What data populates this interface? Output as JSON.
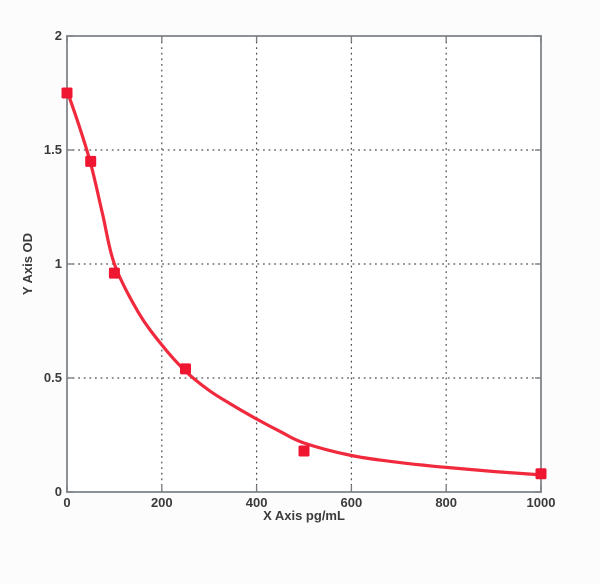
{
  "figure": {
    "xlabel": "X Axis pg/mL",
    "ylabel": "Y Axis OD",
    "colors": {
      "background": "#fcfcfc",
      "plot_background": "#ffffff",
      "axis": "#7a7f83",
      "grid": "#4f4f4f",
      "text": "#3b3b3b",
      "curve": "#f1293d",
      "marker": "#ee1630"
    }
  },
  "chart_data": {
    "type": "scatter",
    "title": "",
    "xlabel": "X Axis pg/mL",
    "ylabel": "Y Axis OD",
    "xlim": [
      0,
      1000
    ],
    "ylim": [
      0,
      2
    ],
    "grid": "dotted",
    "legend": null,
    "x_ticks": {
      "values": [
        0,
        200,
        400,
        600,
        800,
        1000
      ],
      "labels": [
        "0",
        "200",
        "400",
        "600",
        "800",
        "1000"
      ]
    },
    "y_ticks": {
      "values": [
        0,
        0.5,
        1,
        1.5,
        2
      ],
      "labels": [
        "0",
        "0.5",
        "1",
        "1.5",
        "2"
      ]
    },
    "series": [
      {
        "name": "standard-points",
        "type": "scatter",
        "marker": "square",
        "points": [
          [
            0,
            1.75
          ],
          [
            50,
            1.45
          ],
          [
            100,
            0.96
          ],
          [
            250,
            0.54
          ],
          [
            500,
            0.18
          ],
          [
            1000,
            0.08
          ]
        ]
      },
      {
        "name": "fitted-curve",
        "type": "line",
        "points": [
          [
            0,
            1.76
          ],
          [
            25,
            1.61
          ],
          [
            50,
            1.44
          ],
          [
            75,
            1.22
          ],
          [
            100,
            1.0
          ],
          [
            150,
            0.79
          ],
          [
            200,
            0.645
          ],
          [
            250,
            0.53
          ],
          [
            300,
            0.445
          ],
          [
            350,
            0.38
          ],
          [
            400,
            0.32
          ],
          [
            450,
            0.265
          ],
          [
            500,
            0.215
          ],
          [
            600,
            0.16
          ],
          [
            700,
            0.13
          ],
          [
            800,
            0.108
          ],
          [
            900,
            0.09
          ],
          [
            1000,
            0.075
          ]
        ]
      }
    ]
  }
}
